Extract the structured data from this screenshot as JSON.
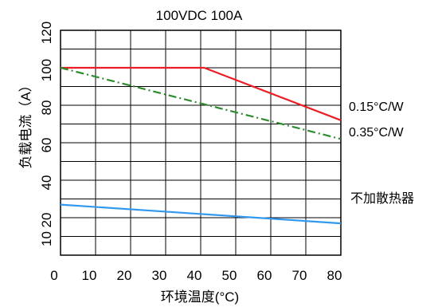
{
  "chart_data": {
    "type": "line",
    "title": "100VDC 100A",
    "xlabel": "环境温度(°C)",
    "ylabel": "负载电流（A）",
    "xlim": [
      0,
      80
    ],
    "ylim": [
      0,
      120
    ],
    "xticks": [
      0,
      10,
      20,
      30,
      40,
      50,
      60,
      70,
      80
    ],
    "yticks": [
      10,
      20,
      40,
      60,
      80,
      100,
      120
    ],
    "grid": true,
    "series": [
      {
        "name": "0.15°C/W",
        "color": "#ee1c25",
        "style": "solid",
        "x": [
          0,
          41,
          80
        ],
        "y": [
          100,
          100,
          72
        ]
      },
      {
        "name": "0.35°C/W",
        "color": "#2e8b2e",
        "style": "dashdot",
        "x": [
          0,
          80
        ],
        "y": [
          100,
          62
        ]
      },
      {
        "name": "不加散热器",
        "color": "#3399ee",
        "style": "solid",
        "x": [
          0,
          80
        ],
        "y": [
          27,
          17
        ]
      }
    ]
  }
}
